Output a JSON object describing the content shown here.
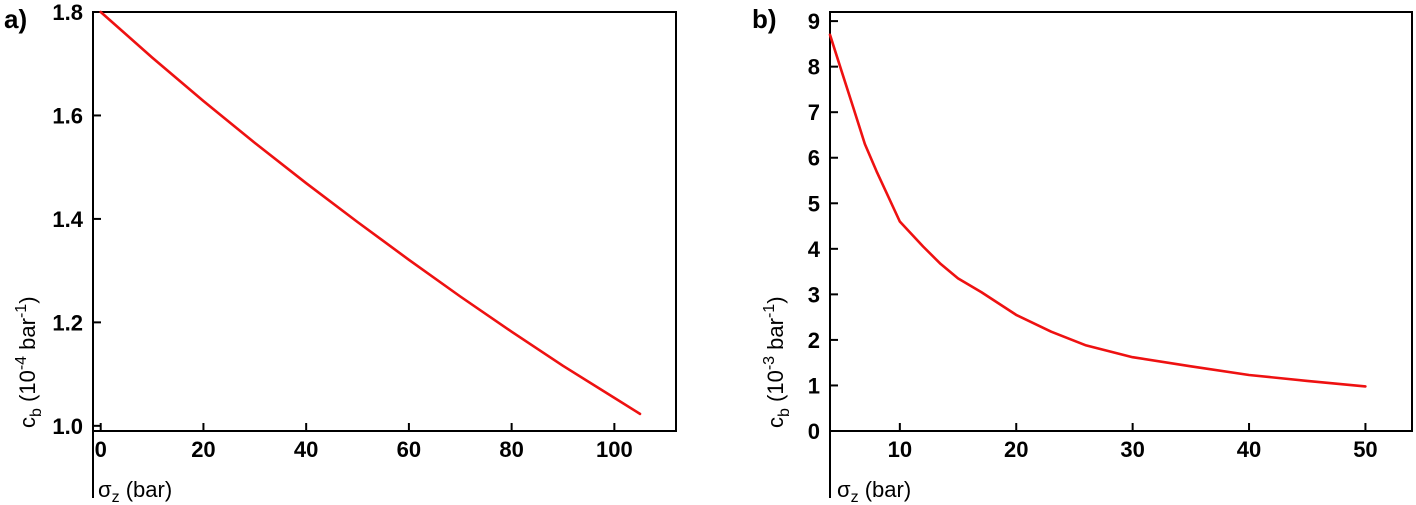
{
  "chart_data": [
    {
      "type": "line",
      "panel_label": "a)",
      "xlabel": {
        "main": "σ",
        "sub": "z",
        "rest": " (bar)"
      },
      "ylabel": {
        "main": "c",
        "sub": "b",
        "pre": " (10",
        "sup1": "-4",
        "mid": " bar",
        "sup2": "-1",
        "post": ")"
      },
      "xlim": [
        -1.5,
        112
      ],
      "ylim": [
        0.99,
        1.8
      ],
      "xticks": [
        0,
        20,
        40,
        60,
        80,
        100
      ],
      "yticks": [
        1.0,
        1.2,
        1.4,
        1.6,
        1.8
      ],
      "ytick_labels": [
        "1.0",
        "1.2",
        "1.4",
        "1.6",
        "1.8"
      ],
      "grid": false,
      "series": [
        {
          "color": "#ee1111",
          "x": [
            0,
            10,
            20,
            30,
            40,
            50,
            60,
            70,
            80,
            90,
            100,
            105
          ],
          "y": [
            1.8,
            1.712,
            1.628,
            1.547,
            1.469,
            1.394,
            1.321,
            1.25,
            1.182,
            1.116,
            1.054,
            1.023
          ]
        }
      ]
    },
    {
      "type": "line",
      "panel_label": "b)",
      "xlabel": {
        "main": "σ",
        "sub": "z",
        "rest": " (bar)"
      },
      "ylabel": {
        "main": "c",
        "sub": "b",
        "pre": " (10",
        "sup1": "-3",
        "mid": " bar",
        "sup2": "-1",
        "post": ")"
      },
      "xlim": [
        4,
        54
      ],
      "ylim": [
        0,
        9.2
      ],
      "xticks": [
        10,
        20,
        30,
        40,
        50
      ],
      "yticks": [
        0,
        1,
        2,
        3,
        4,
        5,
        6,
        7,
        8,
        9
      ],
      "ytick_labels": [
        "0",
        "1",
        "2",
        "3",
        "4",
        "5",
        "6",
        "7",
        "8",
        "9"
      ],
      "grid": false,
      "series": [
        {
          "color": "#ee1111",
          "x": [
            4,
            5,
            6,
            7,
            8,
            10,
            12,
            13.5,
            15,
            17,
            20,
            23,
            26,
            30,
            35,
            40,
            45,
            50
          ],
          "y": [
            8.7,
            7.9,
            7.1,
            6.3,
            5.7,
            4.6,
            4.05,
            3.67,
            3.35,
            3.05,
            2.55,
            2.18,
            1.88,
            1.62,
            1.42,
            1.23,
            1.1,
            0.98
          ]
        }
      ]
    }
  ]
}
